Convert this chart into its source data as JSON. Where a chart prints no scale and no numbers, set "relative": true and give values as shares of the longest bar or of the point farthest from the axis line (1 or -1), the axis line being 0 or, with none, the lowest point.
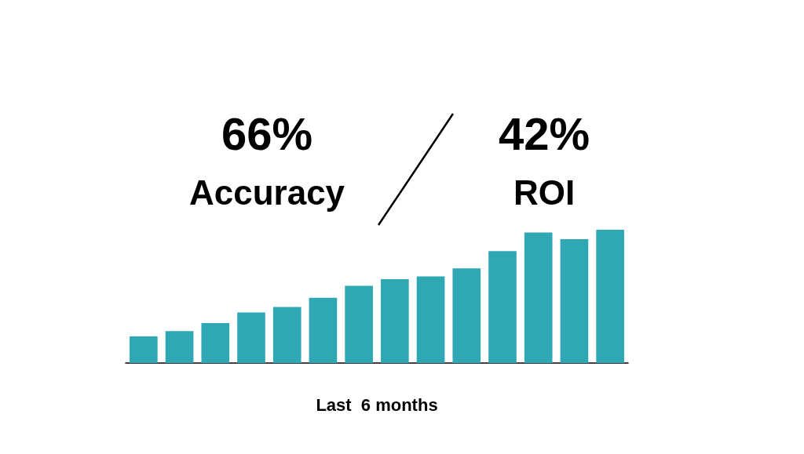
{
  "chart_data": {
    "type": "bar",
    "relative": true,
    "xlabel": "Last  6 months",
    "categories": [
      null,
      null,
      null,
      null,
      null,
      null,
      null,
      null,
      null,
      null,
      null,
      null,
      null,
      null
    ],
    "values": [
      0.2,
      0.24,
      0.3,
      0.38,
      0.42,
      0.49,
      0.58,
      0.63,
      0.65,
      0.71,
      0.84,
      0.98,
      0.93,
      1
    ],
    "color": "#2fa8b4",
    "annotations": [
      "66%",
      "Accuracy",
      "42%",
      "ROI"
    ]
  }
}
